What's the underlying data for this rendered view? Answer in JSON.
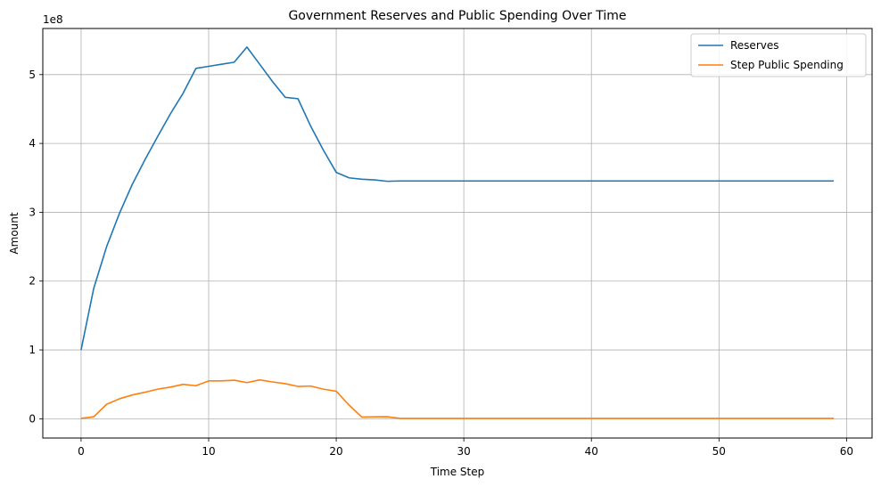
{
  "chart_data": {
    "type": "line",
    "title": "Government Reserves and Public Spending Over Time",
    "xlabel": "Time Step",
    "ylabel": "Amount",
    "y_offset_label": "1e8",
    "xlim": [
      -3.0,
      62.0
    ],
    "ylim": [
      -0.28,
      5.67
    ],
    "x_ticks": [
      0,
      10,
      20,
      30,
      40,
      50,
      60
    ],
    "x_tick_labels": [
      "0",
      "10",
      "20",
      "30",
      "40",
      "50",
      "60"
    ],
    "y_ticks": [
      0,
      1,
      2,
      3,
      4,
      5
    ],
    "y_tick_labels": [
      "0",
      "1",
      "2",
      "3",
      "4",
      "5"
    ],
    "grid": true,
    "legend_position": "top-right",
    "x": [
      0,
      1,
      2,
      3,
      4,
      5,
      6,
      7,
      8,
      9,
      10,
      11,
      12,
      13,
      14,
      15,
      16,
      17,
      18,
      19,
      20,
      21,
      22,
      23,
      24,
      25,
      26,
      27,
      28,
      29,
      30,
      31,
      32,
      33,
      34,
      35,
      36,
      37,
      38,
      39,
      40,
      41,
      42,
      43,
      44,
      45,
      46,
      47,
      48,
      49,
      50,
      51,
      52,
      53,
      54,
      55,
      56,
      57,
      58,
      59
    ],
    "series": [
      {
        "name": "Reserves",
        "color": "#1f77b4",
        "values": [
          1.0,
          1.9,
          2.5,
          2.98,
          3.4,
          3.76,
          4.1,
          4.43,
          4.73,
          5.09,
          5.12,
          5.15,
          5.18,
          5.4,
          5.15,
          4.9,
          4.67,
          4.65,
          4.25,
          3.9,
          3.58,
          3.5,
          3.48,
          3.47,
          3.45,
          3.455,
          3.455,
          3.455,
          3.455,
          3.455,
          3.455,
          3.455,
          3.455,
          3.455,
          3.455,
          3.455,
          3.455,
          3.455,
          3.455,
          3.455,
          3.455,
          3.455,
          3.455,
          3.455,
          3.455,
          3.455,
          3.455,
          3.455,
          3.455,
          3.455,
          3.455,
          3.455,
          3.455,
          3.455,
          3.455,
          3.455,
          3.455,
          3.455,
          3.455,
          3.455
        ]
      },
      {
        "name": "Step Public Spending",
        "color": "#ff7f0e",
        "values": [
          0.005,
          0.03,
          0.21,
          0.29,
          0.345,
          0.385,
          0.43,
          0.46,
          0.5,
          0.48,
          0.55,
          0.55,
          0.56,
          0.525,
          0.565,
          0.535,
          0.51,
          0.47,
          0.475,
          0.43,
          0.4,
          0.2,
          0.025,
          0.028,
          0.03,
          0.005,
          0.005,
          0.005,
          0.005,
          0.005,
          0.005,
          0.005,
          0.005,
          0.005,
          0.005,
          0.005,
          0.005,
          0.005,
          0.005,
          0.005,
          0.005,
          0.005,
          0.005,
          0.005,
          0.005,
          0.005,
          0.005,
          0.005,
          0.005,
          0.005,
          0.005,
          0.005,
          0.005,
          0.005,
          0.005,
          0.005,
          0.005,
          0.005,
          0.005,
          0.005
        ]
      }
    ]
  }
}
